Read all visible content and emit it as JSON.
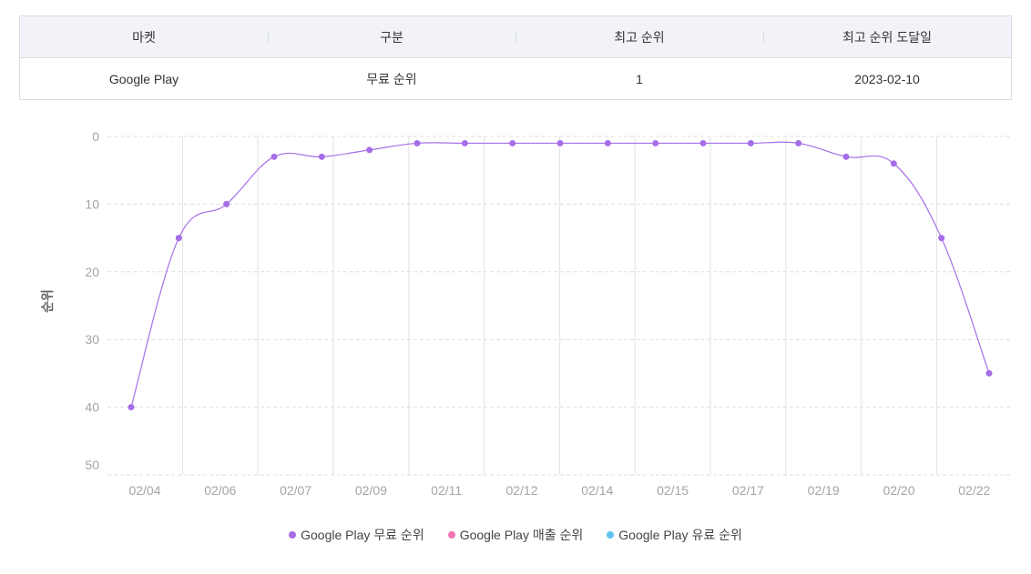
{
  "table": {
    "headers": [
      "마켓",
      "구분",
      "최고 순위",
      "최고 순위 도달일"
    ],
    "row": [
      "Google Play",
      "무료 순위",
      "1",
      "2023-02-10"
    ]
  },
  "chart_data": {
    "type": "line",
    "ylabel": "순위",
    "xlabel": "",
    "y_inverted": true,
    "ylim": [
      0,
      50
    ],
    "yticks": [
      0,
      10,
      20,
      30,
      40,
      50
    ],
    "xtick_labels": [
      "02/04",
      "02/06",
      "02/07",
      "02/09",
      "02/11",
      "02/12",
      "02/14",
      "02/15",
      "02/17",
      "02/19",
      "02/20",
      "02/22"
    ],
    "grid": true,
    "legend_placement": "bottom-center",
    "series": [
      {
        "name": "Google Play 무료 순위",
        "color": "#a56ee8",
        "values": [
          40,
          15,
          10,
          3,
          3,
          2,
          1,
          1,
          1,
          1,
          1,
          1,
          1,
          1,
          1,
          3,
          4,
          15,
          35
        ]
      },
      {
        "name": "Google Play 매출 순위",
        "color": "#f074b4",
        "values": []
      },
      {
        "name": "Google Play 유료 순위",
        "color": "#5ec3ee",
        "values": []
      }
    ]
  }
}
